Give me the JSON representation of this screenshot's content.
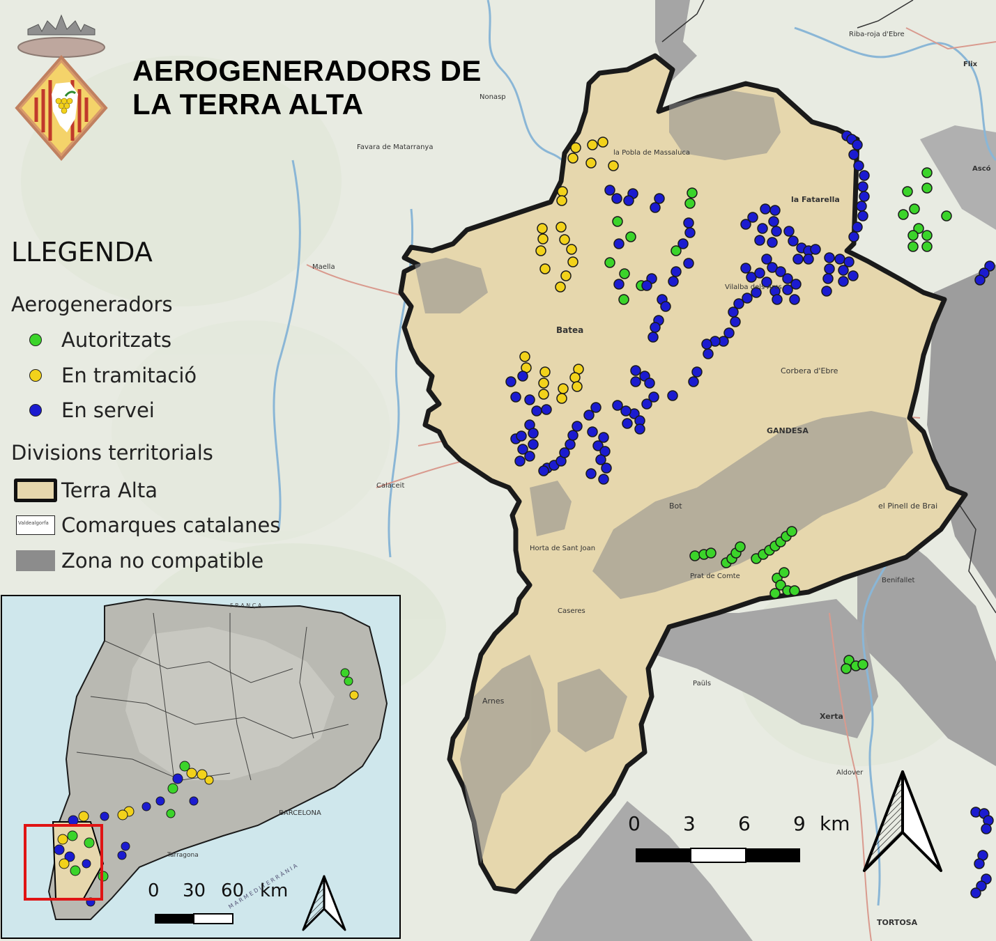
{
  "title": {
    "line1": "AEROGENERADORS DE",
    "line2": "LA TERRA ALTA"
  },
  "legend": {
    "heading": "LLEGENDA",
    "group_turbines": "Aerogeneradors",
    "authorized": "Autoritzats",
    "processing": "En tramitació",
    "in_service": "En servei",
    "group_divisions": "Divisions territorials",
    "terra_alta": "Terra Alta",
    "comarques": "Comarques catalanes",
    "no_compatible": "Zona no compatible",
    "comarques_swatch_text": "Valdealgorfa"
  },
  "colors": {
    "authorized": "#3bd42a",
    "processing": "#f2d21b",
    "in_service": "#1b1bd0",
    "terra_alta_fill": "#e6d7ad",
    "no_compatible": "#8c8c8c",
    "inset_highlight": "#e01414"
  },
  "scale_main": {
    "ticks": [
      "0",
      "3",
      "6",
      "9"
    ],
    "unit": "km"
  },
  "scale_inset": {
    "ticks": [
      "0",
      "30",
      "60"
    ],
    "unit": "km"
  },
  "map_labels": {
    "la_fatarella": "la Fatarella",
    "la_pobla": "la Pobla de Massaluca",
    "batea": "Batea",
    "vilalba": "Vilalba dels Arcs",
    "corbera": "Corbera d'Ebre",
    "gandesa": "GANDESA",
    "el_pinell": "el Pinell de Brai",
    "bot": "Bot",
    "prat": "Prat de Comte",
    "arnes": "Arnes",
    "horta": "Horta de Sant Joan",
    "caseres": "Caseres",
    "maella": "Maella",
    "nonasp": "Nonasp",
    "calaceit": "Calaceit",
    "asco": "Ascó",
    "flix": "Flix",
    "riba_roja": "Riba-roja d'Ebre",
    "tortosa": "TORTOSA",
    "xerta": "Xerta",
    "benifallet": "Benifallet",
    "aldover": "Aldover",
    "pauls": "Paüls",
    "favara": "Favara de Matarranya",
    "barcelona": "BARCELONA",
    "tarragona": "Tarragona",
    "franca": "F R A N Ç A",
    "mar": "M A R   M E D I T E R R À N I A"
  },
  "icons": [
    "north-arrow-icon",
    "coat-of-arms-icon"
  ]
}
